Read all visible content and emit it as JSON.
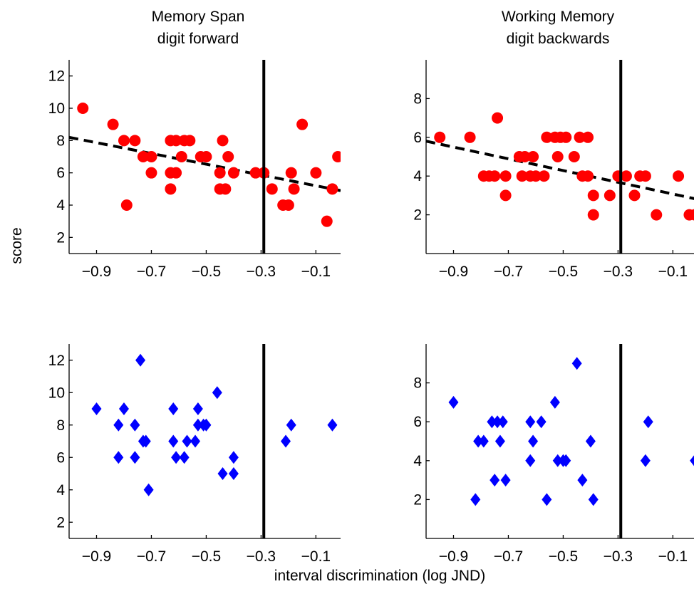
{
  "figure": {
    "ylabel": "score",
    "xlabel": "interval discrimination (log JND)"
  },
  "colors": {
    "red_series": "#ff0000",
    "blue_series": "#0000ff",
    "axis": "#000000",
    "regression_line": "#000000",
    "threshold_line": "#000000"
  },
  "chart_data": [
    {
      "type": "scatter",
      "title": [
        "Memory Span",
        "digit forward"
      ],
      "marker": "circle",
      "xticks": [
        "-0.9",
        "-0.7",
        "-0.5",
        "-0.3",
        "-0.1"
      ],
      "xtick_values": [
        -0.9,
        -0.7,
        -0.5,
        -0.3,
        -0.1
      ],
      "yticks": [
        "2",
        "4",
        "6",
        "8",
        "10",
        "12"
      ],
      "ytick_values": [
        2,
        4,
        6,
        8,
        10,
        12
      ],
      "xlim": [
        -1.0,
        -0.01
      ],
      "ylim": [
        1,
        13
      ],
      "threshold_x": -0.29,
      "fit_line": [
        [
          -1.0,
          8.2
        ],
        [
          -0.01,
          4.9
        ]
      ],
      "grid": false,
      "points": [
        [
          -0.95,
          10
        ],
        [
          -0.84,
          9
        ],
        [
          -0.8,
          8
        ],
        [
          -0.76,
          8
        ],
        [
          -0.79,
          4
        ],
        [
          -0.73,
          7
        ],
        [
          -0.7,
          7
        ],
        [
          -0.7,
          6
        ],
        [
          -0.63,
          8
        ],
        [
          -0.61,
          8
        ],
        [
          -0.58,
          8
        ],
        [
          -0.56,
          8
        ],
        [
          -0.59,
          7
        ],
        [
          -0.63,
          6
        ],
        [
          -0.61,
          6
        ],
        [
          -0.63,
          5
        ],
        [
          -0.52,
          7
        ],
        [
          -0.5,
          7
        ],
        [
          -0.44,
          8
        ],
        [
          -0.42,
          7
        ],
        [
          -0.45,
          6
        ],
        [
          -0.4,
          6
        ],
        [
          -0.45,
          5
        ],
        [
          -0.43,
          5
        ],
        [
          -0.32,
          6
        ],
        [
          -0.29,
          6
        ],
        [
          -0.26,
          5
        ],
        [
          -0.22,
          4
        ],
        [
          -0.2,
          4
        ],
        [
          -0.19,
          6
        ],
        [
          -0.18,
          5
        ],
        [
          -0.15,
          9
        ],
        [
          -0.1,
          6
        ],
        [
          -0.06,
          3
        ],
        [
          -0.04,
          5
        ],
        [
          -0.02,
          7
        ]
      ]
    },
    {
      "type": "scatter",
      "title": [
        "Working Memory",
        "digit backwards"
      ],
      "marker": "circle",
      "xticks": [
        "-0.9",
        "-0.7",
        "-0.5",
        "-0.3",
        "-0.1"
      ],
      "xtick_values": [
        -0.9,
        -0.7,
        -0.5,
        -0.3,
        -0.1
      ],
      "yticks": [
        "2",
        "4",
        "6",
        "8"
      ],
      "ytick_values": [
        2,
        4,
        6,
        8
      ],
      "xlim": [
        -1.0,
        -0.01
      ],
      "ylim": [
        0,
        10
      ],
      "threshold_x": -0.29,
      "fit_line": [
        [
          -1.0,
          5.8
        ],
        [
          -0.01,
          2.8
        ]
      ],
      "grid": false,
      "points": [
        [
          -0.95,
          6
        ],
        [
          -0.84,
          6
        ],
        [
          -0.79,
          4
        ],
        [
          -0.77,
          4
        ],
        [
          -0.75,
          4
        ],
        [
          -0.74,
          7
        ],
        [
          -0.71,
          4
        ],
        [
          -0.71,
          3
        ],
        [
          -0.66,
          5
        ],
        [
          -0.64,
          5
        ],
        [
          -0.65,
          4
        ],
        [
          -0.61,
          5
        ],
        [
          -0.62,
          4
        ],
        [
          -0.6,
          4
        ],
        [
          -0.57,
          4
        ],
        [
          -0.56,
          6
        ],
        [
          -0.53,
          6
        ],
        [
          -0.51,
          6
        ],
        [
          -0.49,
          6
        ],
        [
          -0.52,
          5
        ],
        [
          -0.46,
          5
        ],
        [
          -0.44,
          6
        ],
        [
          -0.41,
          6
        ],
        [
          -0.39,
          3
        ],
        [
          -0.39,
          2
        ],
        [
          -0.43,
          4
        ],
        [
          -0.41,
          4
        ],
        [
          -0.33,
          3
        ],
        [
          -0.3,
          4
        ],
        [
          -0.27,
          4
        ],
        [
          -0.24,
          3
        ],
        [
          -0.22,
          4
        ],
        [
          -0.2,
          4
        ],
        [
          -0.16,
          2
        ],
        [
          -0.08,
          4
        ],
        [
          -0.04,
          2
        ],
        [
          -0.02,
          2
        ]
      ]
    },
    {
      "type": "scatter",
      "title": "",
      "marker": "diamond",
      "xticks": [
        "-0.9",
        "-0.7",
        "-0.5",
        "-0.3",
        "-0.1"
      ],
      "xtick_values": [
        -0.9,
        -0.7,
        -0.5,
        -0.3,
        -0.1
      ],
      "yticks": [
        "2",
        "4",
        "6",
        "8",
        "10",
        "12"
      ],
      "ytick_values": [
        2,
        4,
        6,
        8,
        10,
        12
      ],
      "xlim": [
        -1.0,
        -0.01
      ],
      "ylim": [
        1,
        13
      ],
      "threshold_x": -0.29,
      "fit_line": null,
      "grid": false,
      "points": [
        [
          -0.9,
          9
        ],
        [
          -0.82,
          8
        ],
        [
          -0.82,
          6
        ],
        [
          -0.8,
          9
        ],
        [
          -0.76,
          8
        ],
        [
          -0.76,
          6
        ],
        [
          -0.74,
          12
        ],
        [
          -0.73,
          7
        ],
        [
          -0.72,
          7
        ],
        [
          -0.71,
          4
        ],
        [
          -0.62,
          9
        ],
        [
          -0.62,
          7
        ],
        [
          -0.61,
          6
        ],
        [
          -0.57,
          7
        ],
        [
          -0.58,
          6
        ],
        [
          -0.54,
          7
        ],
        [
          -0.53,
          8
        ],
        [
          -0.53,
          9
        ],
        [
          -0.51,
          8
        ],
        [
          -0.5,
          8
        ],
        [
          -0.46,
          10
        ],
        [
          -0.44,
          5
        ],
        [
          -0.4,
          6
        ],
        [
          -0.4,
          5
        ],
        [
          -0.21,
          7
        ],
        [
          -0.19,
          8
        ],
        [
          -0.04,
          8
        ]
      ]
    },
    {
      "type": "scatter",
      "title": "",
      "marker": "diamond",
      "xticks": [
        "-0.9",
        "-0.7",
        "-0.5",
        "-0.3",
        "-0.1"
      ],
      "xtick_values": [
        -0.9,
        -0.7,
        -0.5,
        -0.3,
        -0.1
      ],
      "yticks": [
        "2",
        "4",
        "6",
        "8"
      ],
      "ytick_values": [
        2,
        4,
        6,
        8
      ],
      "xlim": [
        -1.0,
        -0.01
      ],
      "ylim": [
        0,
        10
      ],
      "threshold_x": -0.29,
      "fit_line": null,
      "grid": false,
      "points": [
        [
          -0.9,
          7
        ],
        [
          -0.82,
          2
        ],
        [
          -0.81,
          5
        ],
        [
          -0.79,
          5
        ],
        [
          -0.76,
          6
        ],
        [
          -0.75,
          3
        ],
        [
          -0.74,
          6
        ],
        [
          -0.73,
          5
        ],
        [
          -0.72,
          6
        ],
        [
          -0.71,
          3
        ],
        [
          -0.62,
          6
        ],
        [
          -0.61,
          5
        ],
        [
          -0.62,
          4
        ],
        [
          -0.58,
          6
        ],
        [
          -0.56,
          2
        ],
        [
          -0.53,
          7
        ],
        [
          -0.52,
          4
        ],
        [
          -0.5,
          4
        ],
        [
          -0.49,
          4
        ],
        [
          -0.45,
          9
        ],
        [
          -0.43,
          3
        ],
        [
          -0.4,
          5
        ],
        [
          -0.39,
          2
        ],
        [
          -0.2,
          4
        ],
        [
          -0.19,
          6
        ],
        [
          -0.02,
          4
        ]
      ]
    }
  ]
}
